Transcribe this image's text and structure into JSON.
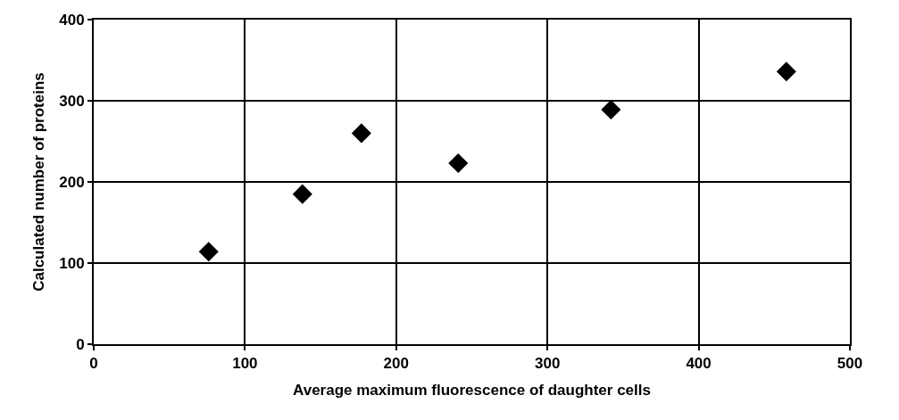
{
  "chart_data": {
    "type": "scatter",
    "xlabel": "Average maximum fluorescence of daughter cells",
    "ylabel": "Calculated number of proteins",
    "x": [
      76,
      138,
      177,
      241,
      342,
      458
    ],
    "series": [
      {
        "color": "#000000",
        "values": [
          114,
          185,
          260,
          223,
          289,
          336
        ]
      }
    ],
    "xlim": [
      0,
      500
    ],
    "xticks": [
      0,
      100,
      200,
      300,
      400,
      500
    ],
    "ylim": [
      0,
      400
    ],
    "yticks": [
      0,
      100,
      200,
      300,
      400
    ],
    "grid": true,
    "marker": "diamond"
  }
}
